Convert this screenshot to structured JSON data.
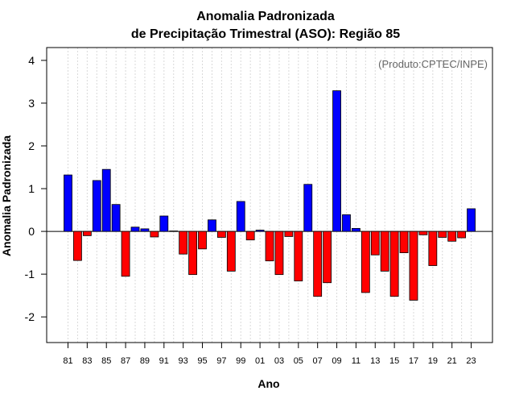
{
  "chart_data": {
    "type": "bar",
    "title": "Anomalia Padronizada",
    "subtitle": "de Precipitação Trimestral (ASO): Região 85",
    "xlabel": "Ano",
    "ylabel": "Anomalia Padronizada",
    "annotation": "(Produto:CPTEC/INPE)",
    "ylim": [
      -2.6,
      4.3
    ],
    "yticks": [
      -2,
      -1,
      0,
      1,
      2,
      3,
      4
    ],
    "ytick_labels": [
      "-2",
      "-1",
      "0",
      "1",
      "2",
      "3",
      "4"
    ],
    "positive_color": "#0000ff",
    "negative_color": "#ff0000",
    "categories": [
      "81",
      "82",
      "83",
      "84",
      "85",
      "86",
      "87",
      "88",
      "89",
      "90",
      "91",
      "92",
      "93",
      "94",
      "95",
      "96",
      "97",
      "98",
      "99",
      "00",
      "01",
      "02",
      "03",
      "04",
      "05",
      "06",
      "07",
      "08",
      "09",
      "10",
      "11",
      "12",
      "13",
      "14",
      "15",
      "16",
      "17",
      "18",
      "19",
      "20",
      "21",
      "22",
      "23"
    ],
    "xtick_labels": [
      "81",
      "83",
      "85",
      "87",
      "89",
      "91",
      "93",
      "95",
      "97",
      "99",
      "01",
      "03",
      "05",
      "07",
      "09",
      "11",
      "13",
      "15",
      "17",
      "19",
      "21",
      "23"
    ],
    "values": [
      1.32,
      -0.68,
      -0.1,
      1.19,
      1.45,
      0.63,
      -1.05,
      0.1,
      0.06,
      -0.13,
      0.36,
      0.01,
      -0.53,
      -1.01,
      -0.41,
      0.27,
      -0.14,
      -0.93,
      0.7,
      -0.2,
      0.03,
      -0.69,
      -1.01,
      -0.12,
      -1.16,
      1.1,
      -1.52,
      -1.2,
      3.29,
      0.39,
      0.07,
      -1.43,
      -0.55,
      -0.93,
      -1.52,
      -0.5,
      -1.61,
      -0.08,
      -0.8,
      -0.14,
      -0.23,
      -0.15,
      0.53
    ],
    "grid": true
  }
}
